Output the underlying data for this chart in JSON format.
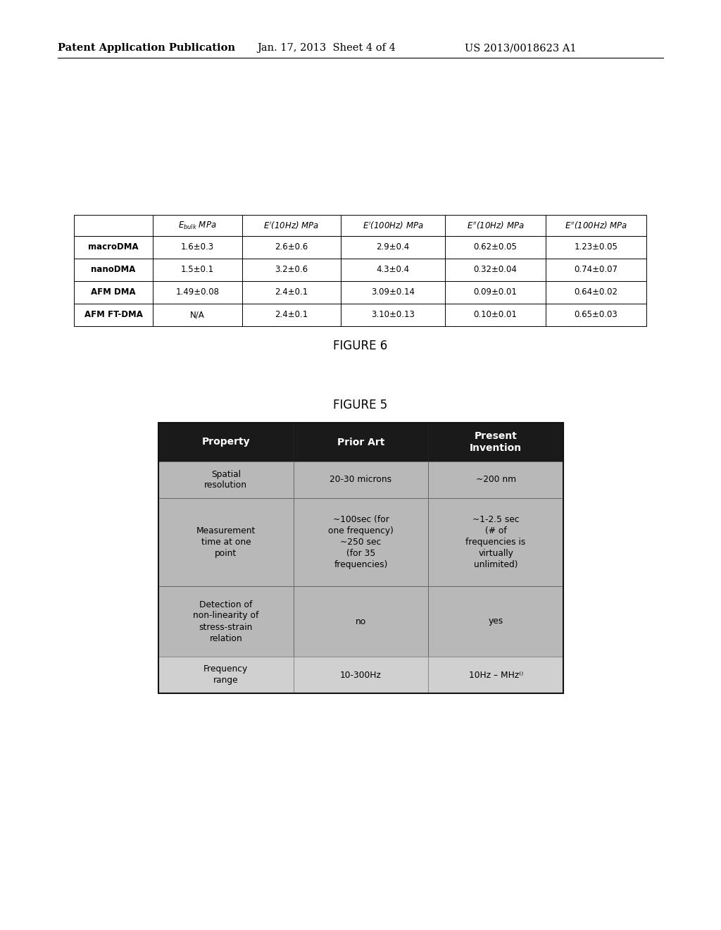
{
  "header_text_left": "Patent Application Publication",
  "header_text_mid": "Jan. 17, 2013  Sheet 4 of 4",
  "header_text_right": "US 2013/0018623 A1",
  "figure6_caption": "FIGURE 6",
  "figure5_caption": "FIGURE 5",
  "table6_headers": [
    "",
    "E_bulk MPa",
    "E'(10Hz) MPa",
    "E'(100Hz) MPa",
    "E''(10Hz) MPa",
    "E''(100Hz) MPa"
  ],
  "table6_rows": [
    [
      "macroDMA",
      "1.6±0.3",
      "2.6±0.6",
      "2.9±0.4",
      "0.62±0.05",
      "1.23±0.05"
    ],
    [
      "nanoDMA",
      "1.5±0.1",
      "3.2±0.6",
      "4.3±0.4",
      "0.32±0.04",
      "0.74±0.07"
    ],
    [
      "AFM DMA",
      "1.49±0.08",
      "2.4±0.1",
      "3.09±0.14",
      "0.09±0.01",
      "0.64±0.02"
    ],
    [
      "AFM FT-DMA",
      "N/A",
      "2.4±0.1",
      "3.10±0.13",
      "0.10±0.01",
      "0.65±0.03"
    ]
  ],
  "table5_headers": [
    "Property",
    "Prior Art",
    "Present\nInvention"
  ],
  "table5_rows": [
    [
      "Spatial\nresolution",
      "20-30 microns",
      "~200 nm"
    ],
    [
      "Measurement\ntime at one\npoint",
      "~100sec (for\none frequency)\n~250 sec\n(for 35\nfrequencies)",
      "~1-2.5 sec\n(# of\nfrequencies is\nvirtually\nunlimited)"
    ],
    [
      "Detection of\nnon-linearity of\nstress-strain\nrelation",
      "no",
      "yes"
    ],
    [
      "Frequency\nrange",
      "10-300Hz",
      "10Hz – MHz⁽⁾"
    ]
  ],
  "page_bg": "#ffffff",
  "table6_border": "#000000",
  "table5_header_bg": "#1a1a1a",
  "table5_header_fg": "#ffffff",
  "table5_row_bg": "#b8b8b8",
  "table5_last_row_bg": "#d0d0d0",
  "table5_border": "#555555"
}
